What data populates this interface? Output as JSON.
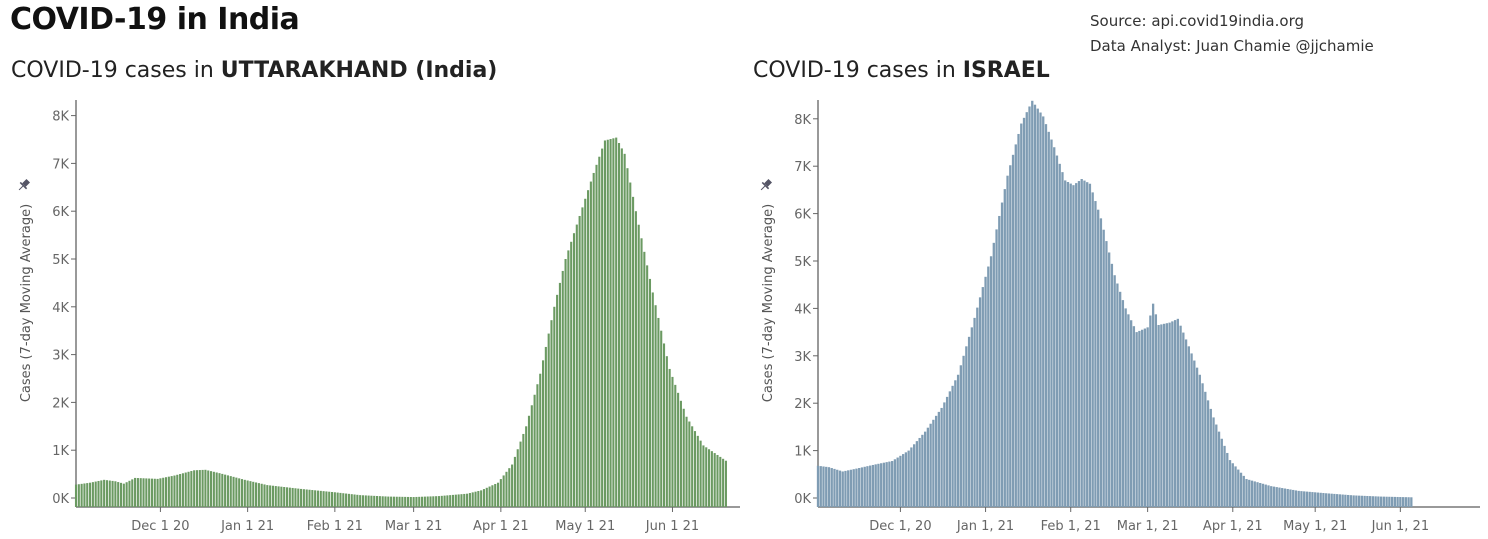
{
  "header": {
    "title": "COVID-19 in India",
    "source": "Source: api.covid19india.org",
    "analyst": "Data Analyst:  Juan Chamie @jjchamie"
  },
  "chart_data": [
    {
      "type": "bar",
      "title_prefix": "COVID-19 cases in ",
      "title_bold": "UTTARAKHAND (India)",
      "ylabel": "Cases (7-day Moving Average)",
      "xlabel": "",
      "color": "#6b9a62",
      "ylim": [
        0,
        8500
      ],
      "yticks": [
        0,
        1000,
        2000,
        3000,
        4000,
        5000,
        6000,
        7000,
        8000
      ],
      "ytick_labels": [
        "0K",
        "1K",
        "2K",
        "3K",
        "4K",
        "5K",
        "6K",
        "7K",
        "8K"
      ],
      "x_start": "2020-11-01",
      "x_end": "2021-06-25",
      "xtick_dates": [
        "2020-12-01",
        "2021-01-01",
        "2021-02-01",
        "2021-03-01",
        "2021-04-01",
        "2021-05-01",
        "2021-06-01"
      ],
      "xtick_labels": [
        "Dec 1 20",
        "Jan 1 21",
        "Feb 1 21",
        "Mar 1 21",
        "Apr 1 21",
        "May 1 21",
        "Jun 1 21"
      ],
      "series_start": "2020-11-01",
      "series_end": "2021-06-20",
      "keypoints": [
        [
          "2020-11-01",
          280
        ],
        [
          "2020-11-06",
          320
        ],
        [
          "2020-11-11",
          380
        ],
        [
          "2020-11-15",
          350
        ],
        [
          "2020-11-18",
          300
        ],
        [
          "2020-11-22",
          420
        ],
        [
          "2020-11-30",
          400
        ],
        [
          "2020-12-06",
          470
        ],
        [
          "2020-12-13",
          580
        ],
        [
          "2020-12-17",
          590
        ],
        [
          "2020-12-22",
          520
        ],
        [
          "2020-12-31",
          380
        ],
        [
          "2021-01-08",
          270
        ],
        [
          "2021-01-20",
          190
        ],
        [
          "2021-02-01",
          120
        ],
        [
          "2021-02-10",
          60
        ],
        [
          "2021-02-20",
          30
        ],
        [
          "2021-03-01",
          20
        ],
        [
          "2021-03-10",
          40
        ],
        [
          "2021-03-20",
          90
        ],
        [
          "2021-03-25",
          160
        ],
        [
          "2021-03-31",
          320
        ],
        [
          "2021-04-05",
          700
        ],
        [
          "2021-04-10",
          1500
        ],
        [
          "2021-04-15",
          2600
        ],
        [
          "2021-04-20",
          4000
        ],
        [
          "2021-04-24",
          5000
        ],
        [
          "2021-04-29",
          5900
        ],
        [
          "2021-05-04",
          6800
        ],
        [
          "2021-05-08",
          7480
        ],
        [
          "2021-05-12",
          7540
        ],
        [
          "2021-05-15",
          7200
        ],
        [
          "2021-05-19",
          6000
        ],
        [
          "2021-05-25",
          4300
        ],
        [
          "2021-05-31",
          2700
        ],
        [
          "2021-06-06",
          1700
        ],
        [
          "2021-06-12",
          1100
        ],
        [
          "2021-06-20",
          780
        ]
      ]
    },
    {
      "type": "bar",
      "title_prefix": "COVID-19 cases in ",
      "title_bold": "ISRAEL",
      "ylabel": "Cases (7-day Moving Average)",
      "xlabel": "",
      "color": "#7f9cb3",
      "ylim": [
        0,
        8500
      ],
      "yticks": [
        0,
        1000,
        2000,
        3000,
        4000,
        5000,
        6000,
        7000,
        8000
      ],
      "ytick_labels": [
        "0K",
        "1K",
        "2K",
        "3K",
        "4K",
        "5K",
        "6K",
        "7K",
        "8K"
      ],
      "x_start": "2020-11-01",
      "x_end": "2021-06-30",
      "xtick_dates": [
        "2020-12-01",
        "2021-01-01",
        "2021-02-01",
        "2021-03-01",
        "2021-04-01",
        "2021-05-01",
        "2021-06-01"
      ],
      "xtick_labels": [
        "Dec 1, 20",
        "Jan 1, 21",
        "Feb 1, 21",
        "Mar 1, 21",
        "Apr 1, 21",
        "May 1, 21",
        "Jun 1, 21"
      ],
      "series_start": "2020-11-01",
      "series_end": "2021-06-05",
      "keypoints": [
        [
          "2020-11-01",
          680
        ],
        [
          "2020-11-05",
          650
        ],
        [
          "2020-11-10",
          560
        ],
        [
          "2020-11-15",
          620
        ],
        [
          "2020-11-22",
          710
        ],
        [
          "2020-11-28",
          780
        ],
        [
          "2020-12-04",
          1000
        ],
        [
          "2020-12-10",
          1400
        ],
        [
          "2020-12-16",
          1900
        ],
        [
          "2020-12-22",
          2600
        ],
        [
          "2020-12-28",
          3800
        ],
        [
          "2021-01-03",
          5100
        ],
        [
          "2021-01-09",
          6800
        ],
        [
          "2021-01-14",
          7900
        ],
        [
          "2021-01-18",
          8380
        ],
        [
          "2021-01-22",
          8050
        ],
        [
          "2021-01-26",
          7400
        ],
        [
          "2021-01-30",
          6700
        ],
        [
          "2021-02-02",
          6600
        ],
        [
          "2021-02-05",
          6730
        ],
        [
          "2021-02-08",
          6630
        ],
        [
          "2021-02-12",
          5900
        ],
        [
          "2021-02-17",
          4700
        ],
        [
          "2021-02-21",
          4000
        ],
        [
          "2021-02-25",
          3500
        ],
        [
          "2021-03-01",
          3600
        ],
        [
          "2021-03-03",
          4100
        ],
        [
          "2021-03-05",
          3650
        ],
        [
          "2021-03-09",
          3700
        ],
        [
          "2021-03-12",
          3780
        ],
        [
          "2021-03-16",
          3200
        ],
        [
          "2021-03-20",
          2600
        ],
        [
          "2021-03-25",
          1700
        ],
        [
          "2021-03-31",
          800
        ],
        [
          "2021-04-06",
          400
        ],
        [
          "2021-04-15",
          250
        ],
        [
          "2021-04-25",
          150
        ],
        [
          "2021-05-05",
          100
        ],
        [
          "2021-05-15",
          55
        ],
        [
          "2021-05-25",
          30
        ],
        [
          "2021-06-05",
          15
        ]
      ]
    }
  ]
}
